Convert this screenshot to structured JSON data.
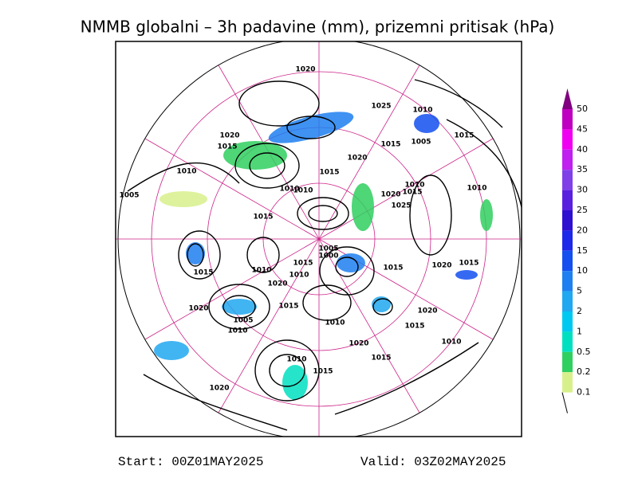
{
  "header": {
    "title": "NMMB globalni – 3h padavine (mm), prizemni pritisak (hPa)"
  },
  "footer": {
    "start": "Start: 00Z01MAY2025",
    "valid": "Valid: 03Z02MAY2025"
  },
  "colorbar": {
    "labels": [
      50,
      45,
      40,
      35,
      30,
      25,
      20,
      15,
      10,
      5,
      2,
      1,
      0.5,
      0.2,
      0.1
    ],
    "colors": [
      "#800080",
      "#c000c0",
      "#f000f0",
      "#c020f0",
      "#8040e8",
      "#5a20e0",
      "#3010d0",
      "#1e28e8",
      "#1450f0",
      "#1e80f0",
      "#20a8f0",
      "#00c8f0",
      "#00e0c0",
      "#30d060",
      "#d8f08c"
    ]
  },
  "isobar_labels": [
    1020,
    1025,
    1010,
    1020,
    1015,
    1005,
    1015,
    1015,
    1020,
    1015,
    1010,
    1010,
    1010,
    1010,
    1015,
    1020,
    1010,
    1005,
    1025,
    1015,
    1005,
    1000,
    1015,
    1010,
    1015,
    1020,
    1015,
    1015,
    1020,
    1010,
    1015,
    1020,
    1020,
    1005,
    1010,
    1015,
    1010,
    1020,
    1010,
    1015,
    1010,
    1015,
    1020
  ]
}
